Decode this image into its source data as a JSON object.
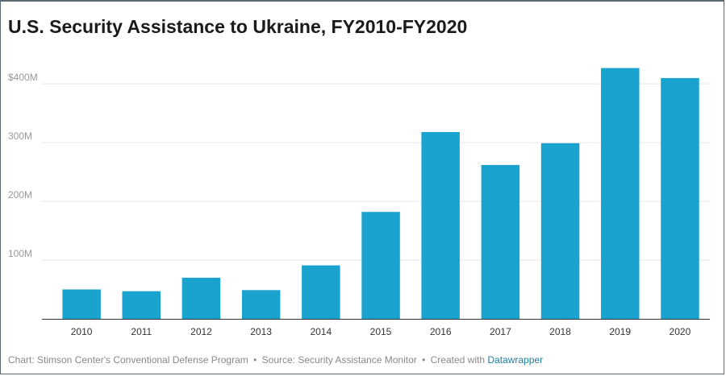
{
  "chart_data": {
    "type": "bar",
    "title": "U.S. Security Assistance to Ukraine, FY2010-FY2020",
    "xlabel": "",
    "ylabel": "",
    "categories": [
      "2010",
      "2011",
      "2012",
      "2013",
      "2014",
      "2015",
      "2016",
      "2017",
      "2018",
      "2019",
      "2020"
    ],
    "values": [
      50,
      47,
      70,
      49,
      91,
      182,
      318,
      262,
      299,
      427,
      410
    ],
    "unit": "M",
    "ylim": [
      0,
      440
    ],
    "yticks": [
      {
        "value": 100,
        "label": "100M"
      },
      {
        "value": 200,
        "label": "200M"
      },
      {
        "value": 300,
        "label": "300M"
      },
      {
        "value": 400,
        "label": "$400M"
      }
    ],
    "grid": true,
    "bar_color": "#1ba3cf"
  },
  "footer": {
    "chart_credit": "Chart: Stimson Center's Conventional Defense Program",
    "separator": "•",
    "source": "Source: Security Assistance Monitor",
    "created_with": "Created with",
    "tool": "Datawrapper"
  },
  "colors": {
    "link": "#1d81a2",
    "grid": "#e6e6e6",
    "axis": "#333333"
  }
}
